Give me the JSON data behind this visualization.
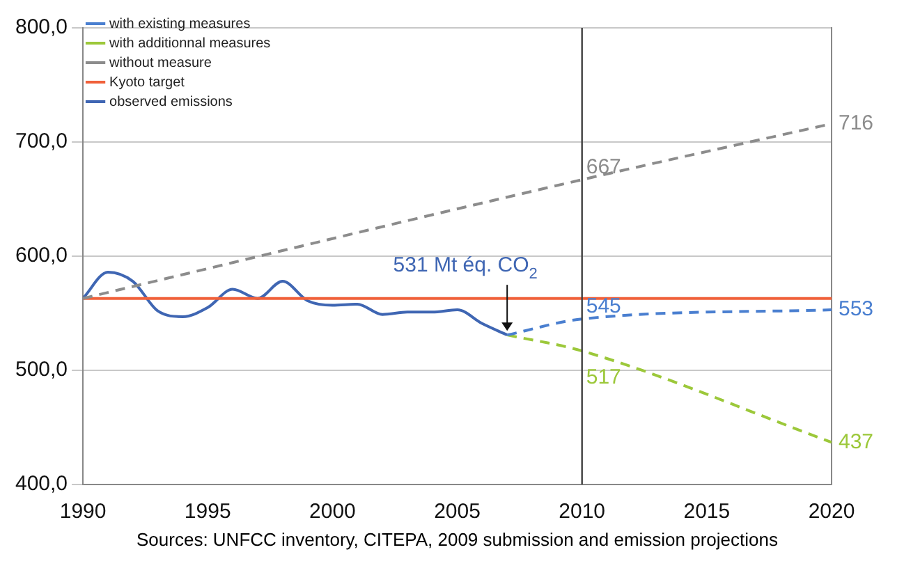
{
  "chart_data": {
    "type": "line",
    "xlim": [
      1990,
      2020
    ],
    "xticks": [
      1990,
      1995,
      2000,
      2005,
      2010,
      2015,
      2020
    ],
    "ylim": [
      400,
      800
    ],
    "yticks": [
      {
        "value": 400,
        "label": "400,0"
      },
      {
        "value": 500,
        "label": "500,0"
      },
      {
        "value": 600,
        "label": "600,0"
      },
      {
        "value": 700,
        "label": "700,0"
      },
      {
        "value": 800,
        "label": "800,0"
      }
    ],
    "grid": "y",
    "legend": "top left",
    "series": [
      {
        "name": "with existing measures",
        "color": "#4a7fd0",
        "line_style": "dashed",
        "x": [
          2007,
          2010,
          2020
        ],
        "values": [
          531,
          545,
          553
        ]
      },
      {
        "name": "with additionnal measures",
        "color": "#9cc83a",
        "line_style": "dashed",
        "x": [
          2007,
          2010,
          2020
        ],
        "values": [
          531,
          517,
          437
        ]
      },
      {
        "name": "without measure",
        "color": "#8c8c8c",
        "line_style": "dashed",
        "x": [
          1990,
          2010,
          2020
        ],
        "values": [
          563,
          667,
          716
        ]
      },
      {
        "name": "Kyoto target",
        "color": "#f0603a",
        "line_style": "solid",
        "x": [
          1990,
          2020
        ],
        "values": [
          563,
          563
        ]
      },
      {
        "name": "observed emissions",
        "color": "#3f66b3",
        "line_style": "solid",
        "x": [
          1990,
          1991,
          1992,
          1993,
          1994,
          1995,
          1996,
          1997,
          1998,
          1999,
          2000,
          2001,
          2002,
          2003,
          2004,
          2005,
          2006,
          2007
        ],
        "values": [
          563,
          586,
          578,
          552,
          547,
          555,
          571,
          563,
          578,
          561,
          557,
          558,
          549,
          551,
          551,
          553,
          541,
          531
        ]
      }
    ],
    "ref_lines": [
      {
        "axis": "x",
        "value": 2010,
        "color": "#404040"
      }
    ],
    "annotations": [
      {
        "text": "531 Mt éq. CO$_{2}$",
        "x": 2007,
        "y": 531
      },
      {
        "text": "667",
        "x": 2010,
        "y": 667
      },
      {
        "text": "716",
        "x": 2020,
        "y": 716
      },
      {
        "text": "545",
        "x": 2010,
        "y": 545
      },
      {
        "text": "553",
        "x": 2020,
        "y": 553
      },
      {
        "text": "517",
        "x": 2010,
        "y": 517
      },
      {
        "text": "437",
        "x": 2020,
        "y": 437
      },
      "Sources: UNFCC inventory, CITEPA, 2009 submission and emission projections"
    ]
  }
}
